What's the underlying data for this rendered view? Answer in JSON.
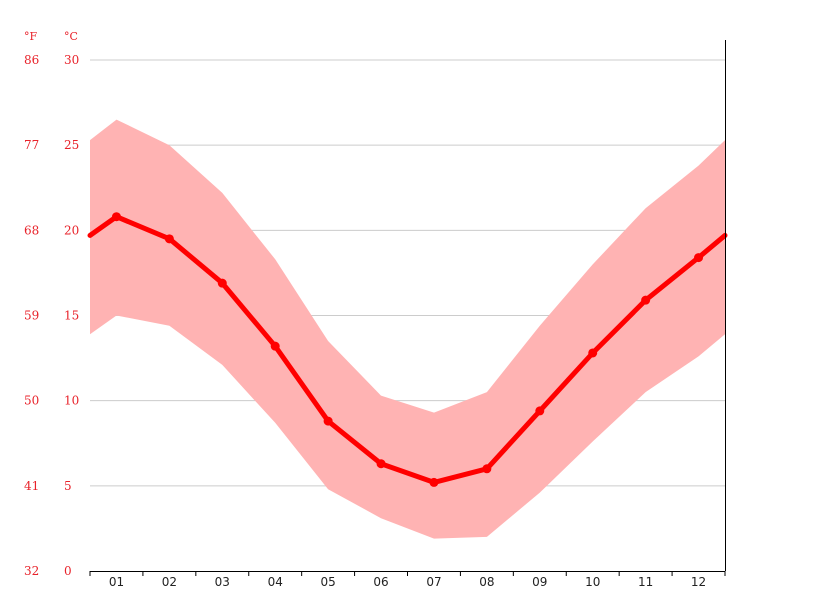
{
  "chart_data": {
    "type": "line",
    "title": "",
    "xlabel": "",
    "ylabel": "",
    "units": {
      "fahrenheit": "°F",
      "celsius": "°C"
    },
    "categories": [
      "01",
      "02",
      "03",
      "04",
      "05",
      "06",
      "07",
      "08",
      "09",
      "10",
      "11",
      "12"
    ],
    "y_ticks_celsius": [
      "0",
      "5",
      "10",
      "15",
      "20",
      "25",
      "30"
    ],
    "y_ticks_fahrenheit": [
      "32",
      "41",
      "50",
      "59",
      "68",
      "77",
      "86"
    ],
    "ylim": [
      0,
      30
    ],
    "grid": true,
    "series": [
      {
        "role": "mean",
        "values": [
          20.8,
          19.5,
          16.9,
          13.2,
          8.8,
          6.3,
          5.2,
          6.0,
          9.4,
          12.8,
          15.9,
          18.4
        ]
      },
      {
        "role": "max",
        "values": [
          26.5,
          25.0,
          22.2,
          18.3,
          13.5,
          10.3,
          9.3,
          10.5,
          14.4,
          18.0,
          21.3,
          23.8
        ]
      },
      {
        "role": "min",
        "values": [
          15.0,
          14.4,
          12.1,
          8.7,
          4.8,
          3.1,
          1.9,
          2.0,
          4.6,
          7.6,
          10.5,
          12.6
        ]
      }
    ],
    "edge_values": {
      "mean": 19.7,
      "max": 25.3,
      "min": 13.9
    },
    "colors": {
      "line": "#ff0000",
      "band": "#ffb3b3",
      "axis_text": "#e8222a",
      "grid": "#cccccc"
    }
  }
}
